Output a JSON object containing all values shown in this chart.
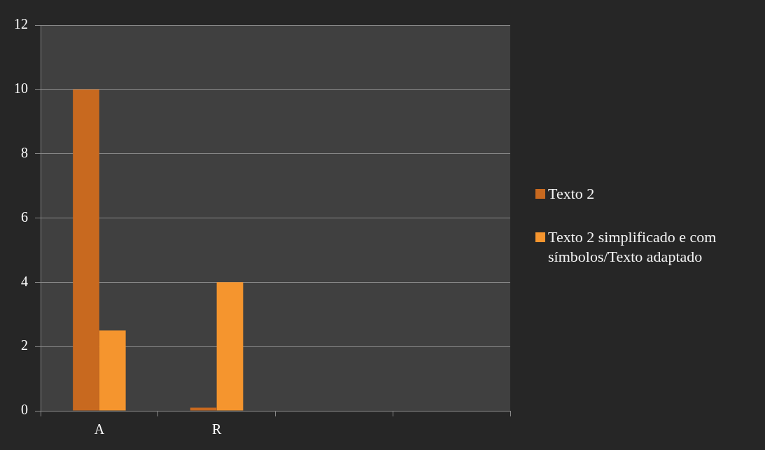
{
  "chart_data": {
    "type": "bar",
    "categories": [
      "A",
      "R",
      null,
      null
    ],
    "series": [
      {
        "name": "Texto 2",
        "color": "#c8691f",
        "values": [
          10,
          0.1,
          null,
          null
        ]
      },
      {
        "name": "Texto 2 simplificado e com símbolos/Texto adaptado",
        "color": "#f5952e",
        "values": [
          2.5,
          4,
          null,
          null
        ]
      }
    ],
    "ylim": [
      0,
      12
    ],
    "yticks": [
      0,
      2,
      4,
      6,
      8,
      10,
      12
    ],
    "grid": "y",
    "legend": "right"
  }
}
